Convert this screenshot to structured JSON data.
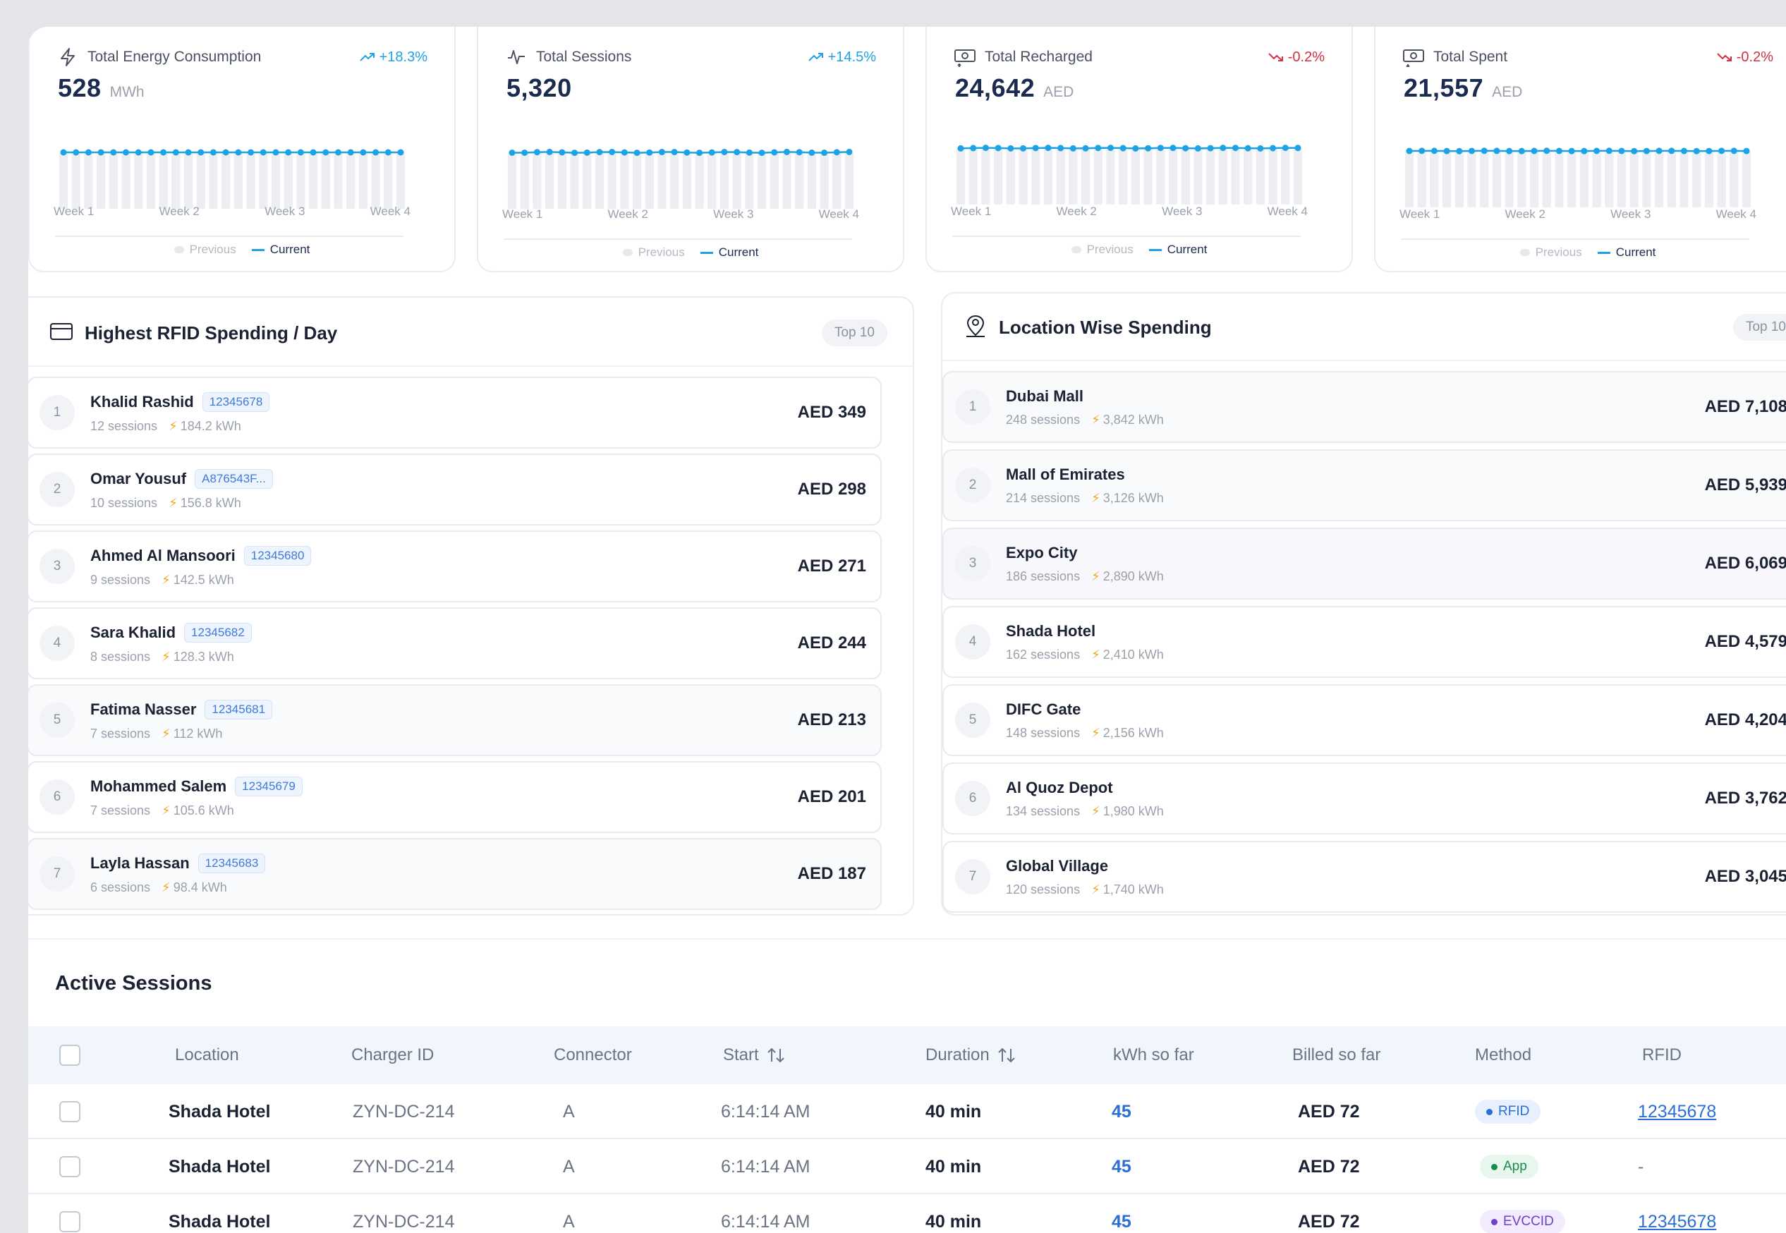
{
  "kpis": [
    {
      "title": "Total Energy Consumption",
      "trend": "+18.3%",
      "trend_dir": "up",
      "value": "528",
      "unit": "MWh",
      "icon": "bolt-icon",
      "weeks": [
        "Week 1",
        "Week 2",
        "Week 3",
        "Week 4"
      ],
      "legend_prev": "Previous",
      "legend_cur": "Current"
    },
    {
      "title": "Total Sessions",
      "trend": "+14.5%",
      "trend_dir": "up",
      "value": "5,320",
      "unit": "",
      "icon": "activity-icon",
      "weeks": [
        "Week 1",
        "Week 2",
        "Week 3",
        "Week 4"
      ],
      "legend_prev": "Previous",
      "legend_cur": "Current"
    },
    {
      "title": "Total Recharged",
      "trend": "-0.2%",
      "trend_dir": "down",
      "value": "24,642",
      "unit": "AED",
      "icon": "money-in-icon",
      "weeks": [
        "Week 1",
        "Week 2",
        "Week 3",
        "Week 4"
      ],
      "legend_prev": "Previous",
      "legend_cur": "Current"
    },
    {
      "title": "Total Spent",
      "trend": "-0.2%",
      "trend_dir": "down",
      "value": "21,557",
      "unit": "AED",
      "icon": "money-out-icon",
      "weeks": [
        "Week 1",
        "Week 2",
        "Week 3",
        "Week 4"
      ],
      "legend_prev": "Previous",
      "legend_cur": "Current"
    }
  ],
  "rfid_panel": {
    "title": "Highest RFID Spending / Day",
    "pill": "Top 10",
    "rows": [
      {
        "rank": "1",
        "name": "Khalid Rashid",
        "tag": "12345678",
        "sessions": "12 sessions",
        "kwh": "184.2 kWh",
        "amount": "AED 349"
      },
      {
        "rank": "2",
        "name": "Omar Yousuf",
        "tag": "A876543F...",
        "sessions": "10 sessions",
        "kwh": "156.8 kWh",
        "amount": "AED 298"
      },
      {
        "rank": "3",
        "name": "Ahmed Al Mansoori",
        "tag": "12345680",
        "sessions": "9 sessions",
        "kwh": "142.5 kWh",
        "amount": "AED 271"
      },
      {
        "rank": "4",
        "name": "Sara Khalid",
        "tag": "12345682",
        "sessions": "8 sessions",
        "kwh": "128.3 kWh",
        "amount": "AED 244"
      },
      {
        "rank": "5",
        "name": "Fatima Nasser",
        "tag": "12345681",
        "sessions": "7 sessions",
        "kwh": "112 kWh",
        "amount": "AED 213"
      },
      {
        "rank": "6",
        "name": "Mohammed Salem",
        "tag": "12345679",
        "sessions": "7 sessions",
        "kwh": "105.6 kWh",
        "amount": "AED 201"
      },
      {
        "rank": "7",
        "name": "Layla Hassan",
        "tag": "12345683",
        "sessions": "6 sessions",
        "kwh": "98.4 kWh",
        "amount": "AED 187"
      }
    ]
  },
  "location_panel": {
    "title": "Location Wise Spending",
    "pill": "Top 10",
    "rows": [
      {
        "rank": "1",
        "name": "Dubai Mall",
        "sessions": "248 sessions",
        "kwh": "3,842 kWh",
        "amount": "AED 7,108"
      },
      {
        "rank": "2",
        "name": "Mall of Emirates",
        "sessions": "214 sessions",
        "kwh": "3,126 kWh",
        "amount": "AED 5,939"
      },
      {
        "rank": "3",
        "name": "Expo City",
        "sessions": "186 sessions",
        "kwh": "2,890 kWh",
        "amount": "AED 6,069"
      },
      {
        "rank": "4",
        "name": "Shada Hotel",
        "sessions": "162 sessions",
        "kwh": "2,410 kWh",
        "amount": "AED 4,579"
      },
      {
        "rank": "5",
        "name": "DIFC Gate",
        "sessions": "148 sessions",
        "kwh": "2,156 kWh",
        "amount": "AED 4,204"
      },
      {
        "rank": "6",
        "name": "Al Quoz Depot",
        "sessions": "134 sessions",
        "kwh": "1,980 kWh",
        "amount": "AED 3,762"
      },
      {
        "rank": "7",
        "name": "Global Village",
        "sessions": "120 sessions",
        "kwh": "1,740 kWh",
        "amount": "AED 3,045"
      }
    ]
  },
  "sessions": {
    "title": "Active Sessions",
    "columns": [
      "Location",
      "Charger ID",
      "Connector",
      "Start",
      "Duration",
      "kWh so far",
      "Billed so far",
      "Method",
      "RFID"
    ],
    "rows": [
      {
        "location": "Shada Hotel",
        "charger": "ZYN-DC-214",
        "connector": "A",
        "start": "6:14:14 AM",
        "duration": "40 min",
        "kwh": "45",
        "billed": "AED 72",
        "method": "RFID",
        "rfid": "12345678"
      },
      {
        "location": "Shada Hotel",
        "charger": "ZYN-DC-214",
        "connector": "A",
        "start": "6:14:14 AM",
        "duration": "40 min",
        "kwh": "45",
        "billed": "AED 72",
        "method": "App",
        "rfid": "-"
      },
      {
        "location": "Shada Hotel",
        "charger": "ZYN-DC-214",
        "connector": "A",
        "start": "6:14:14 AM",
        "duration": "40 min",
        "kwh": "45",
        "billed": "AED 72",
        "method": "EVCCID",
        "rfid": "12345678"
      }
    ]
  },
  "colors": {
    "accent": "#1ea2e6",
    "positive": "#1ea2e6",
    "negative": "#d23040",
    "link": "#2b6fd6"
  }
}
